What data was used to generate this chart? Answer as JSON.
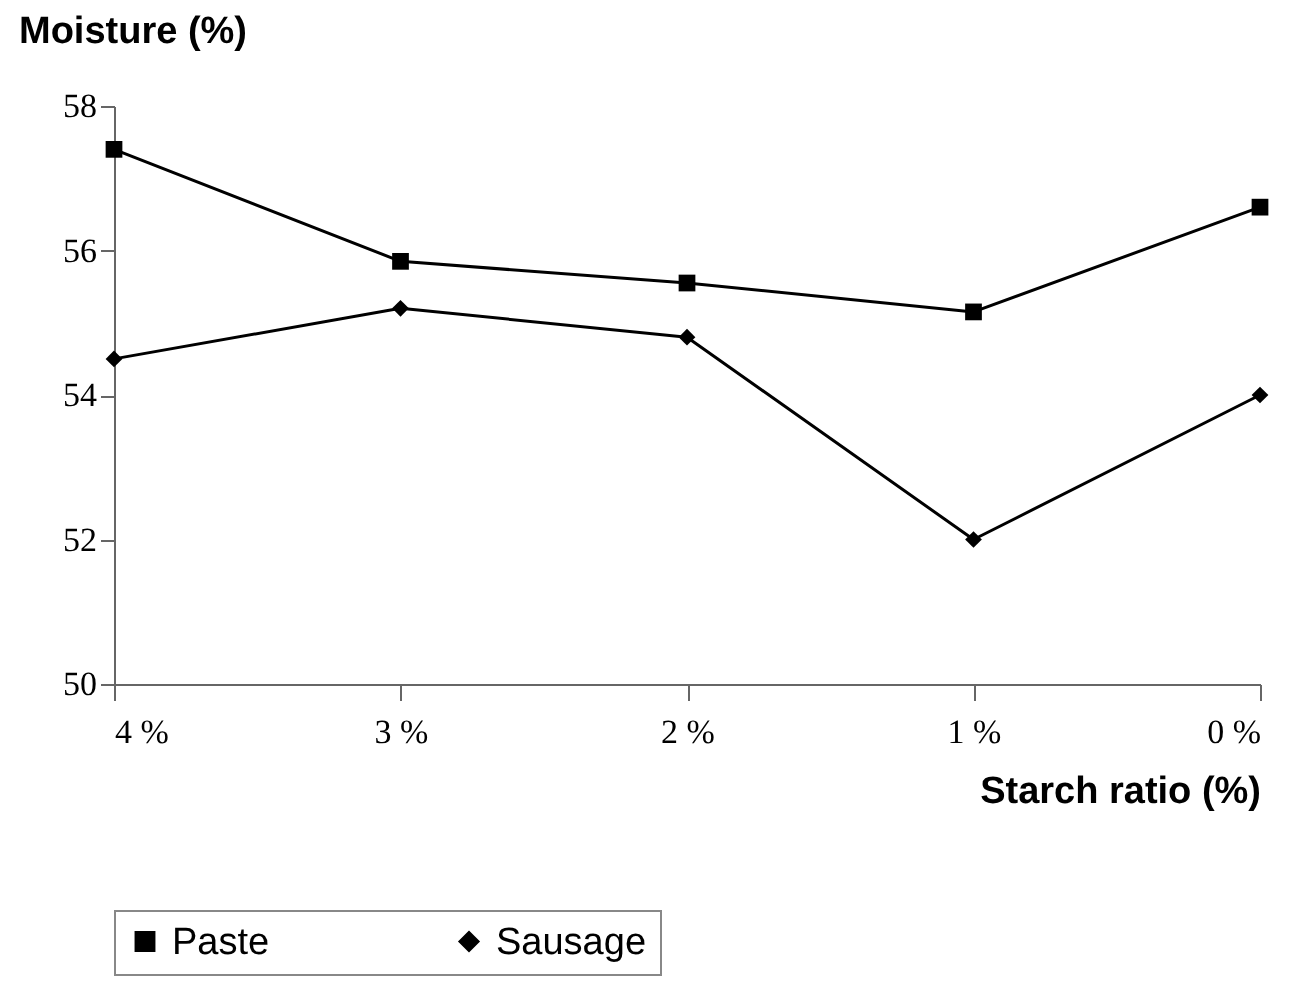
{
  "chart_data": {
    "type": "line",
    "xlabel": "Starch ratio (%)",
    "ylabel": "Moisture (%)",
    "categories": [
      "4 %",
      "3 %",
      "2 %",
      "1 %",
      "0 %"
    ],
    "series": [
      {
        "name": "Paste",
        "color": "#000000",
        "marker": "square",
        "values": [
          57.4,
          55.85,
          55.55,
          55.15,
          56.6
        ]
      },
      {
        "name": "Sausage",
        "color": "#000000",
        "marker": "diamond",
        "values": [
          54.5,
          55.2,
          54.8,
          52.0,
          54.0
        ]
      }
    ],
    "ylim": [
      50,
      58
    ],
    "yticks": [
      50,
      52,
      54,
      56,
      58
    ],
    "grid": false,
    "legend": "bottom"
  }
}
